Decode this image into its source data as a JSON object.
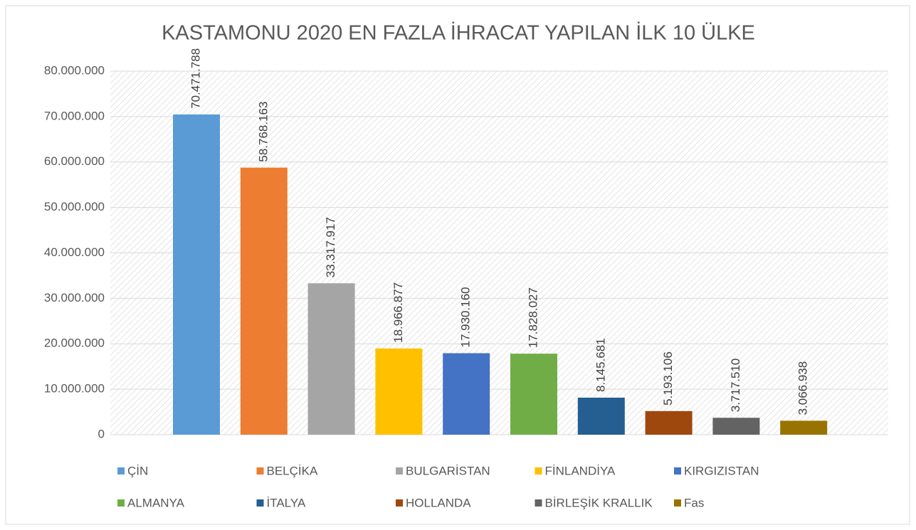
{
  "chart_data": {
    "type": "bar",
    "title": "KASTAMONU 2020 EN FAZLA İHRACAT YAPILAN İLK 10 ÜLKE",
    "series": [
      {
        "name": "ÇİN",
        "color": "#5b9bd5",
        "values": [
          70471788
        ],
        "value_labels": [
          "70.471.788"
        ]
      },
      {
        "name": "BELÇİKA",
        "color": "#ed7d31",
        "values": [
          58768163
        ],
        "value_labels": [
          "58.768.163"
        ]
      },
      {
        "name": "BULGARİSTAN",
        "color": "#a5a5a5",
        "values": [
          33317917
        ],
        "value_labels": [
          "33.317.917"
        ]
      },
      {
        "name": "FİNLANDİYA",
        "color": "#ffc000",
        "values": [
          18966877
        ],
        "value_labels": [
          "18.966.877"
        ]
      },
      {
        "name": "KIRGIZISTAN",
        "color": "#4472c4",
        "values": [
          17930160
        ],
        "value_labels": [
          "17.930.160"
        ]
      },
      {
        "name": "ALMANYA",
        "color": "#70ad47",
        "values": [
          17828027
        ],
        "value_labels": [
          "17.828.027"
        ]
      },
      {
        "name": "İTALYA",
        "color": "#255e91",
        "values": [
          8145681
        ],
        "value_labels": [
          "8.145.681"
        ]
      },
      {
        "name": "HOLLANDA",
        "color": "#9e480e",
        "values": [
          5193106
        ],
        "value_labels": [
          "5.193.106"
        ]
      },
      {
        "name": "BİRLEŞİK KRALLIK",
        "color": "#636363",
        "values": [
          3717510
        ],
        "value_labels": [
          "3.717.510"
        ]
      },
      {
        "name": "Fas",
        "color": "#997300",
        "values": [
          3066938
        ],
        "value_labels": [
          "3.066.938"
        ]
      }
    ],
    "ylim": [
      0,
      80000000
    ],
    "yticks": [
      0,
      {
        "value": 10000000,
        "label": "10.000.000"
      },
      {
        "value": 20000000,
        "label": "20.000.000"
      },
      {
        "value": 30000000,
        "label": "30.000.000"
      },
      {
        "value": 40000000,
        "label": "40.000.000"
      },
      {
        "value": 50000000,
        "label": "50.000.000"
      },
      {
        "value": 60000000,
        "label": "60.000.000"
      },
      {
        "value": 70000000,
        "label": "70.000.000"
      },
      {
        "value": 80000000,
        "label": "80.000.000"
      }
    ],
    "grid": true,
    "legend": "bottom"
  }
}
